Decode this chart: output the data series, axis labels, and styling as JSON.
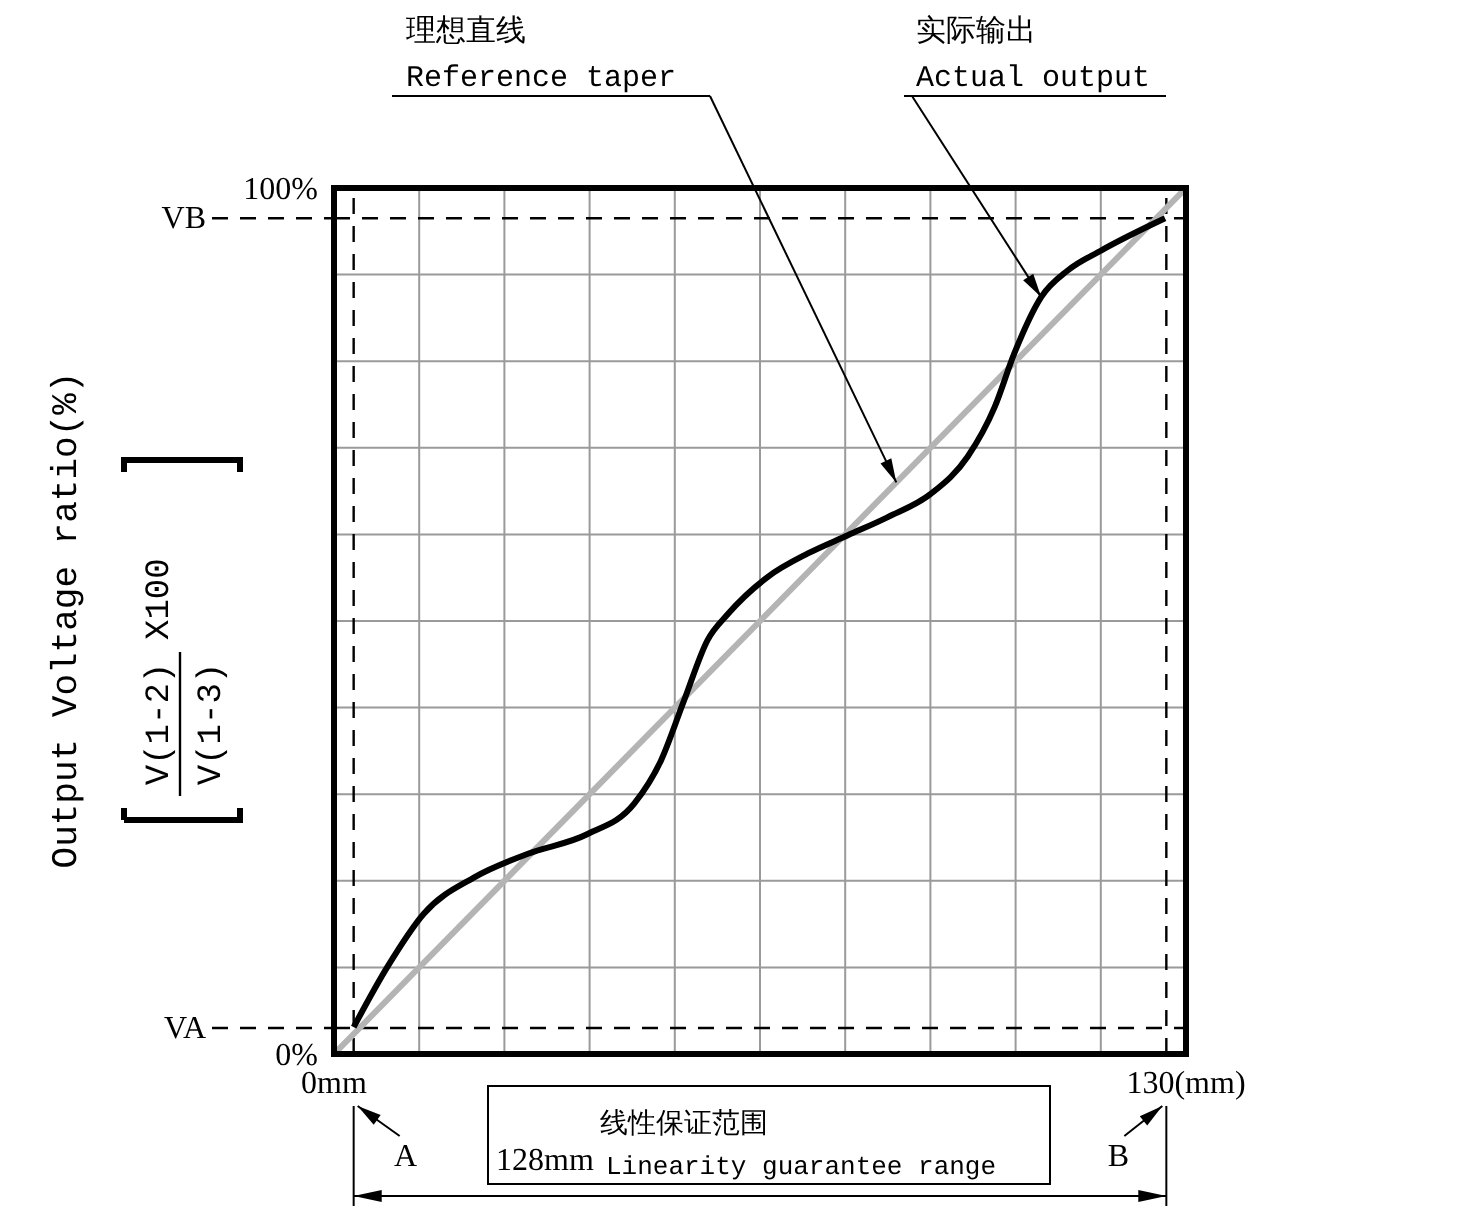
{
  "chart_data": {
    "type": "line",
    "ylabel": "Output Voltage ratio(%)",
    "xlim": [
      0,
      130
    ],
    "ylim": [
      0,
      100
    ],
    "xticks": [
      {
        "value": 0,
        "label": "0mm"
      },
      {
        "value": 13,
        "label": null
      },
      {
        "value": 26,
        "label": null
      },
      {
        "value": 39,
        "label": null
      },
      {
        "value": 52,
        "label": null
      },
      {
        "value": 65,
        "label": null
      },
      {
        "value": 78,
        "label": null
      },
      {
        "value": 91,
        "label": null
      },
      {
        "value": 104,
        "label": null
      },
      {
        "value": 117,
        "label": null
      },
      {
        "value": 130,
        "label": "130(mm)"
      }
    ],
    "yticks": [
      {
        "value": 0,
        "label": "0%"
      },
      {
        "value": 10,
        "label": null
      },
      {
        "value": 20,
        "label": null
      },
      {
        "value": 30,
        "label": null
      },
      {
        "value": 40,
        "label": null
      },
      {
        "value": 50,
        "label": null
      },
      {
        "value": 60,
        "label": null
      },
      {
        "value": 70,
        "label": null
      },
      {
        "value": 80,
        "label": null
      },
      {
        "value": 90,
        "label": null
      },
      {
        "value": 100,
        "label": "100%"
      }
    ],
    "grid": true,
    "series": [
      {
        "name": "Reference taper",
        "color": "#b4b4b4",
        "x": [
          0,
          130
        ],
        "values": [
          0,
          100
        ]
      },
      {
        "name": "Actual output",
        "color": "#000000",
        "x": [
          3,
          8.1,
          13.7,
          21.4,
          29.5,
          38.7,
          45.8,
          49.9,
          53.4,
          57,
          60.1,
          66.2,
          72.3,
          78.4,
          84.5,
          91.1,
          96.7,
          100.8,
          103.8,
          107.9,
          112,
          117.1,
          126.8
        ],
        "values": [
          3.1,
          10,
          16.2,
          20.4,
          23.1,
          25.4,
          28.9,
          33.9,
          40.8,
          47.8,
          50.8,
          55.1,
          57.8,
          59.9,
          62,
          64.7,
          69,
          74.7,
          80.9,
          87.4,
          90.5,
          92.8,
          96.5
        ]
      }
    ],
    "ref_lines": [
      {
        "axis": "x",
        "value": 3,
        "label": "A",
        "color": "#000000",
        "line_style": "dashed"
      },
      {
        "axis": "x",
        "value": 127,
        "label": "B",
        "color": "#000000",
        "line_style": "dashed"
      },
      {
        "axis": "y",
        "value": 3,
        "label": "VA",
        "color": "#000000",
        "line_style": "dashed"
      },
      {
        "axis": "y",
        "value": 96.5,
        "label": "VB",
        "color": "#000000",
        "line_style": "dashed"
      }
    ],
    "annotations": [
      "理想直线",
      "实际输出",
      "128mm",
      "线性保证范围",
      "Linearity guarantee range",
      "V(1-2)",
      "V(1-3)",
      "X100"
    ]
  }
}
